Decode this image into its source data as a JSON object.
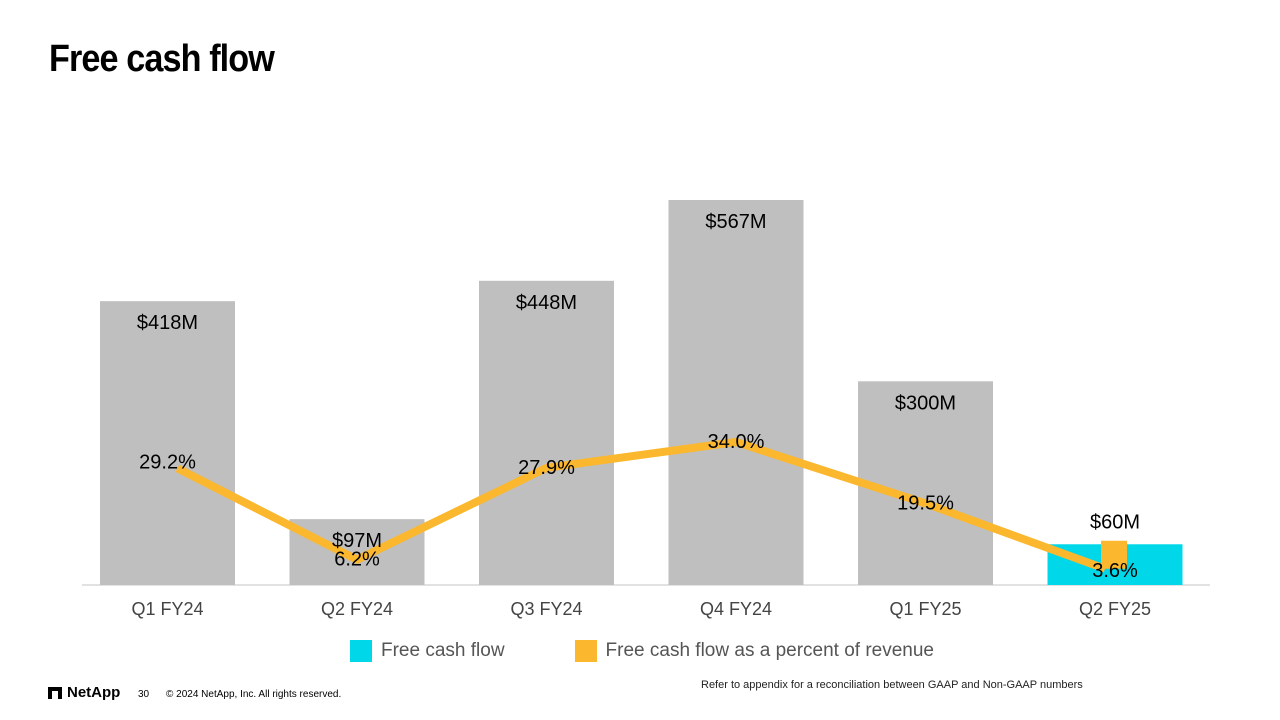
{
  "slide": {
    "title": "Free cash flow",
    "page_number": "30",
    "copyright": "© 2024 NetApp, Inc. All rights reserved.",
    "note": "Refer to appendix for a reconciliation between GAAP and Non-GAAP numbers",
    "logo_text": "NetApp"
  },
  "chart_data": {
    "type": "bar",
    "categories": [
      "Q1 FY24",
      "Q2 FY24",
      "Q3 FY24",
      "Q4 FY24",
      "Q1 FY25",
      "Q2 FY25"
    ],
    "series": [
      {
        "name": "Free cash flow",
        "type": "bar",
        "values": [
          418,
          97,
          448,
          567,
          300,
          60
        ],
        "labels": [
          "$418M",
          "$97M",
          "$448M",
          "$567M",
          "$300M",
          "$60M"
        ],
        "colors": [
          "#bfbfbf",
          "#bfbfbf",
          "#bfbfbf",
          "#bfbfbf",
          "#bfbfbf",
          "#00d7e9"
        ]
      },
      {
        "name": "Free cash flow as a percent of revenue",
        "type": "line",
        "values": [
          29.2,
          6.2,
          27.9,
          34.0,
          19.5,
          3.6
        ],
        "labels": [
          "29.2%",
          "6.2%",
          "27.9%",
          "34.0%",
          "19.5%",
          "3.6%"
        ],
        "color": "#fbb72d"
      }
    ],
    "legend": {
      "placement": "bottom",
      "items": [
        {
          "label": "Free cash flow",
          "color": "#00d7e9"
        },
        {
          "label": "Free cash flow as a percent of revenue",
          "color": "#fbb72d"
        }
      ]
    },
    "ylim_bar": [
      0,
      567
    ],
    "ylim_line": [
      0,
      50
    ],
    "grid": false
  }
}
